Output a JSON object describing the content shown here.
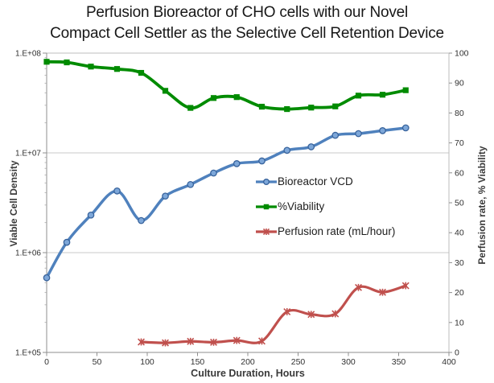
{
  "title": {
    "line1": "Perfusion Bioreactor of CHO cells with our Novel",
    "line2": "Compact Cell Settler as the Selective Cell Retention Device"
  },
  "chart_data": {
    "type": "line",
    "title": "Perfusion Bioreactor of CHO cells with our Novel Compact Cell Settler as the Selective Cell Retention Device",
    "grid": "horizontal-major-only",
    "legend_position": "inside-right-middle",
    "x_axis": {
      "label": "Culture Duration, Hours",
      "min": 0,
      "max": 400,
      "ticks": [
        0,
        50,
        100,
        150,
        200,
        250,
        300,
        350,
        400
      ]
    },
    "y_axis_left": {
      "label": "Viable Cell Density",
      "scale": "log",
      "min": 100000,
      "max": 100000000,
      "tick_labels": [
        "1.E+05",
        "1.E+06",
        "1.E+07",
        "1.E+08"
      ]
    },
    "y_axis_right": {
      "label": "Perfusion rate, % Viability",
      "min": 0,
      "max": 100,
      "ticks": [
        0,
        10,
        20,
        30,
        40,
        50,
        60,
        70,
        80,
        90,
        100
      ]
    },
    "series": [
      {
        "name": "Bioreactor VCD",
        "axis": "left",
        "marker": "circle",
        "color": "#4f81bd",
        "marker_fill": "#7da7d9",
        "marker_edge": "#38639c",
        "line_width": 3.5,
        "x": [
          0,
          20,
          44,
          70,
          94,
          118,
          143,
          166,
          189,
          214,
          239,
          263,
          287,
          310,
          334,
          357
        ],
        "values": [
          560000,
          1270000,
          2380000,
          4150000,
          2100000,
          3690000,
          4820000,
          6280000,
          7800000,
          8300000,
          10600000,
          11500000,
          15000000,
          15600000,
          16700000,
          17800000
        ]
      },
      {
        "name": "%Viability",
        "axis": "right",
        "marker": "square",
        "color": "#008b00",
        "marker_fill": "#008b00",
        "marker_edge": "#006e00",
        "line_width": 3.8,
        "x": [
          0,
          20,
          44,
          70,
          94,
          118,
          143,
          166,
          189,
          214,
          239,
          263,
          287,
          310,
          334,
          357
        ],
        "values": [
          97.1,
          96.9,
          95.5,
          94.7,
          93.4,
          87.4,
          81.7,
          85.0,
          85.3,
          82.1,
          81.3,
          81.8,
          82.2,
          85.8,
          86.1,
          87.6
        ]
      },
      {
        "name": "Perfusion rate (mL/hour)",
        "axis": "right",
        "marker": "x-star",
        "color": "#c0504d",
        "marker_fill": "#c0504d",
        "marker_edge": "#c0504d",
        "line_width": 3.2,
        "x": [
          94,
          118,
          143,
          166,
          189,
          214,
          239,
          263,
          287,
          310,
          334,
          357
        ],
        "values": [
          3.5,
          3.2,
          3.7,
          3.4,
          4.0,
          3.8,
          13.6,
          12.7,
          12.9,
          21.7,
          20.1,
          22.3
        ]
      }
    ]
  }
}
